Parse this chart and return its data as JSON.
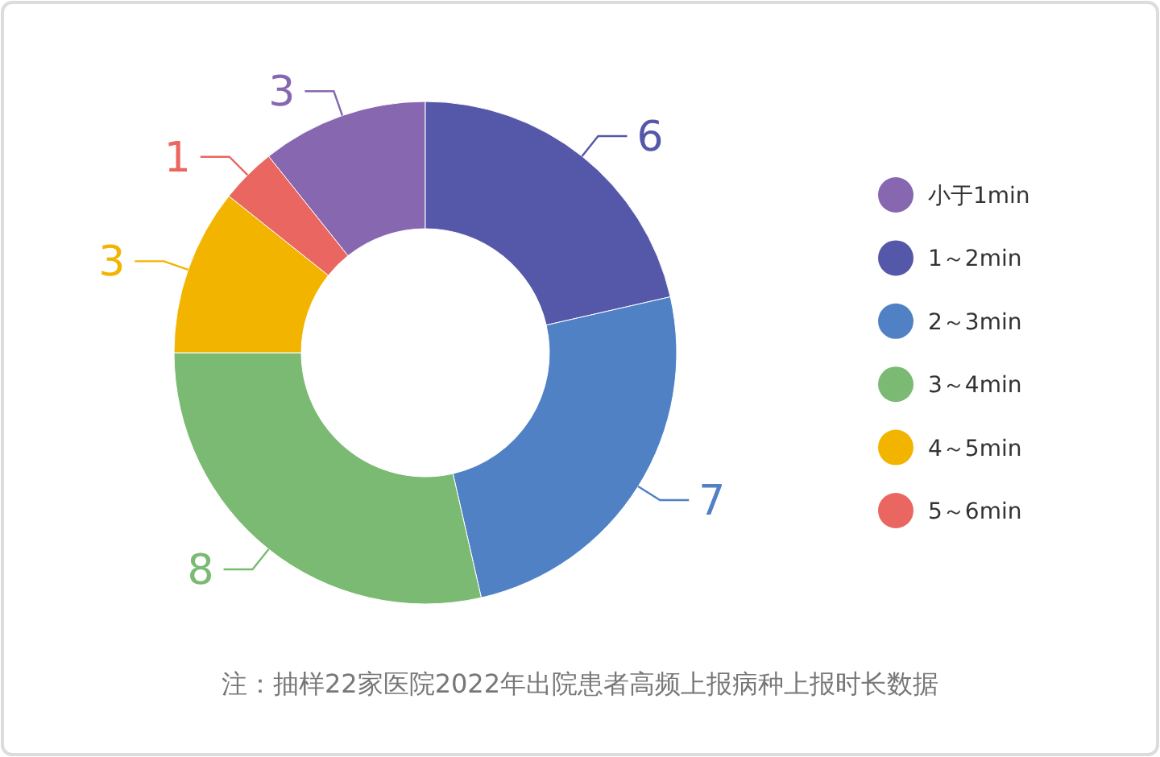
{
  "chart_data": {
    "type": "donut",
    "categories": [
      "小于1min",
      "1～2min",
      "2～3min",
      "3～4min",
      "4～5min",
      "5～6min"
    ],
    "values": [
      3,
      6,
      7,
      8,
      3,
      1
    ],
    "colors": [
      "#8768b0",
      "#5558a8",
      "#4f81c4",
      "#7aba72",
      "#f3b400",
      "#ea6660"
    ],
    "data_labels": true,
    "legend": "right",
    "annotations": [
      "注：抽样22家医院2022年出院患者高频上报病种上报时长数据"
    ]
  }
}
